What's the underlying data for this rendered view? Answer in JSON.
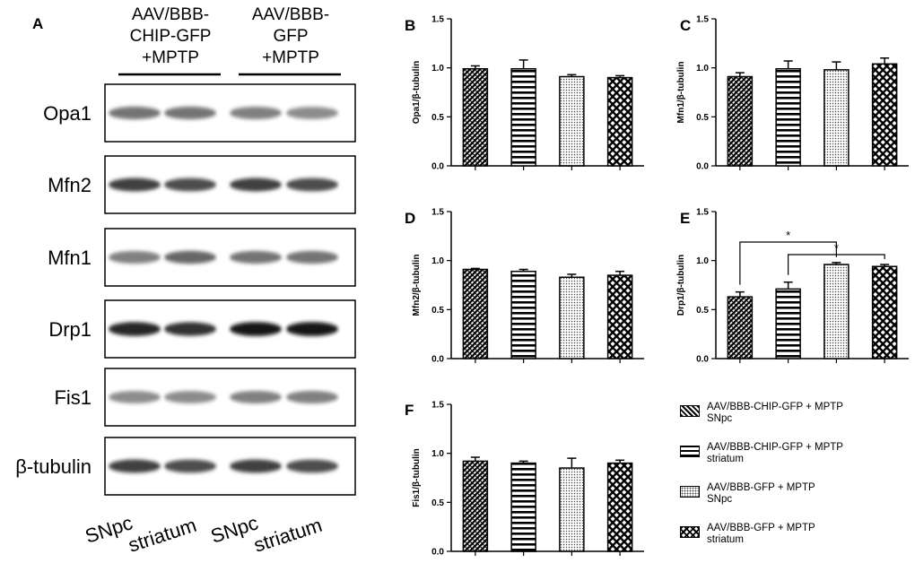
{
  "panel_a": {
    "letter": "A",
    "group_headers": [
      "AAV/BBB-\nCHIP-GFP\n+MPTP",
      "AAV/BBB-\nGFP\n+MPTP"
    ],
    "proteins": [
      "Opa1",
      "Mfn2",
      "Mfn1",
      "Drp1",
      "Fis1",
      "β-tubulin"
    ],
    "lane_labels": [
      "SNpc",
      "striatum",
      "SNpc",
      "striatum"
    ],
    "band_intensity": [
      [
        0.55,
        0.55,
        0.5,
        0.45
      ],
      [
        0.75,
        0.7,
        0.75,
        0.7
      ],
      [
        0.5,
        0.6,
        0.55,
        0.55
      ],
      [
        0.85,
        0.8,
        0.9,
        0.9
      ],
      [
        0.45,
        0.45,
        0.5,
        0.5
      ],
      [
        0.75,
        0.7,
        0.75,
        0.7
      ]
    ]
  },
  "legend": {
    "items": [
      {
        "label": "AAV/BBB-CHIP-GFP + MPTP\nSNpc",
        "pattern": "dark"
      },
      {
        "label": "AAV/BBB-CHIP-GFP + MPTP\nstriatum",
        "pattern": "hstripe"
      },
      {
        "label": "AAV/BBB-GFP + MPTP\nSNpc",
        "pattern": "dots"
      },
      {
        "label": "AAV/BBB-GFP + MPTP\nstriatum",
        "pattern": "cross"
      }
    ]
  },
  "chart_data": [
    {
      "panel": "B",
      "type": "bar",
      "ylabel": "Opa1/β-tubulin",
      "ylim": [
        0,
        1.5
      ],
      "yticks": [
        "0.0",
        "0.5",
        "1.0",
        "1.5"
      ],
      "values": [
        0.99,
        0.99,
        0.91,
        0.9
      ],
      "errors": [
        0.03,
        0.09,
        0.02,
        0.02
      ],
      "significance": []
    },
    {
      "panel": "C",
      "type": "bar",
      "ylabel": "Mfn1/β-tubulin",
      "ylim": [
        0,
        1.5
      ],
      "yticks": [
        "0.0",
        "0.5",
        "1.0",
        "1.5"
      ],
      "values": [
        0.91,
        0.99,
        0.98,
        1.04
      ],
      "errors": [
        0.04,
        0.08,
        0.08,
        0.06
      ],
      "significance": []
    },
    {
      "panel": "D",
      "type": "bar",
      "ylabel": "Mfn2/β-tubulin",
      "ylim": [
        0,
        1.5
      ],
      "yticks": [
        "0.0",
        "0.5",
        "1.0",
        "1.5"
      ],
      "values": [
        0.91,
        0.89,
        0.83,
        0.85
      ],
      "errors": [
        0.01,
        0.02,
        0.03,
        0.04
      ],
      "significance": []
    },
    {
      "panel": "E",
      "type": "bar",
      "ylabel": "Drp1/β-tubulin",
      "ylim": [
        0,
        1.5
      ],
      "yticks": [
        "0.0",
        "0.5",
        "1.0",
        "1.5"
      ],
      "values": [
        0.63,
        0.71,
        0.96,
        0.94
      ],
      "errors": [
        0.05,
        0.07,
        0.02,
        0.02
      ],
      "significance": [
        {
          "from": 0,
          "to": 2,
          "label": "*"
        },
        {
          "from": 1,
          "to": 3,
          "label": "*"
        }
      ]
    },
    {
      "panel": "F",
      "type": "bar",
      "ylabel": "Fis1/β-tubulin",
      "ylim": [
        0,
        1.5
      ],
      "yticks": [
        "0.0",
        "0.5",
        "1.0",
        "1.5"
      ],
      "values": [
        0.92,
        0.9,
        0.85,
        0.9
      ],
      "errors": [
        0.04,
        0.02,
        0.1,
        0.03
      ],
      "significance": []
    }
  ]
}
